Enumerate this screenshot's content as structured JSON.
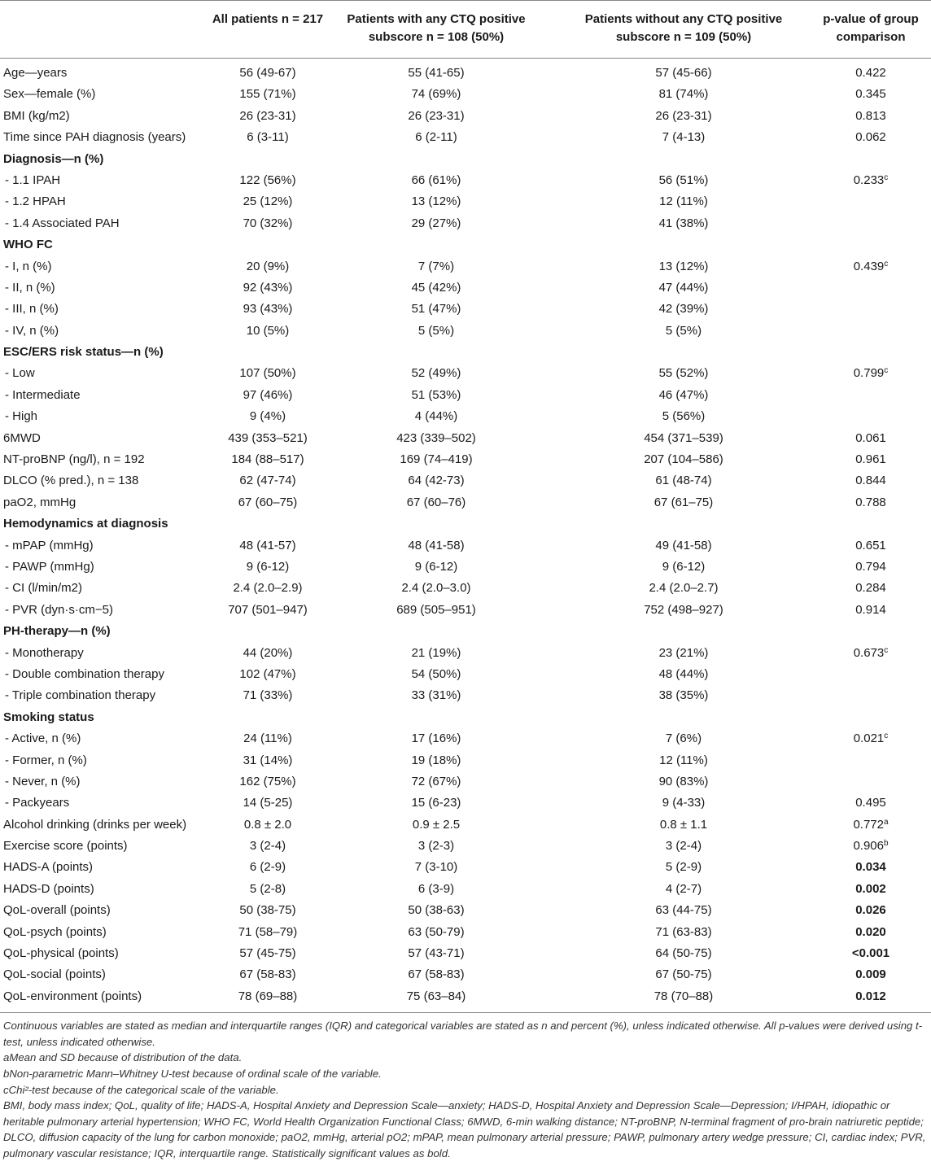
{
  "header": {
    "all": "All patients n = 217",
    "pos": "Patients with any CTQ positive subscore n = 108 (50%)",
    "neg": "Patients without any CTQ positive subscore n = 109 (50%)",
    "p": "p-value of group comparison"
  },
  "rows": [
    {
      "label": "Age—years",
      "all": "56 (49-67)",
      "pos": "55 (41-65)",
      "neg": "57 (45-66)",
      "p": "0.422"
    },
    {
      "label": "Sex—female (%)",
      "all": "155 (71%)",
      "pos": "74 (69%)",
      "neg": "81 (74%)",
      "p": "0.345"
    },
    {
      "label": "BMI (kg/m2)",
      "all": "26 (23-31)",
      "pos": "26 (23-31)",
      "neg": "26 (23-31)",
      "p": "0.813"
    },
    {
      "label": "Time since PAH diagnosis (years)",
      "all": "6 (3-11)",
      "pos": "6 (2-11)",
      "neg": "7 (4-13)",
      "p": "0.062"
    },
    {
      "label": "Diagnosis—n (%)",
      "section": true
    },
    {
      "label": "- 1.1 IPAH",
      "all": "122 (56%)",
      "pos": "66 (61%)",
      "neg": "56 (51%)",
      "p": "0.233",
      "psup": "c"
    },
    {
      "label": "- 1.2 HPAH",
      "all": "25 (12%)",
      "pos": "13 (12%)",
      "neg": "12 (11%)",
      "p": ""
    },
    {
      "label": "- 1.4 Associated PAH",
      "all": "70 (32%)",
      "pos": "29 (27%)",
      "neg": "41 (38%)",
      "p": ""
    },
    {
      "label": "WHO FC",
      "section": true
    },
    {
      "label": "- I, n (%)",
      "all": "20 (9%)",
      "pos": "7 (7%)",
      "neg": "13 (12%)",
      "p": "0.439",
      "psup": "c"
    },
    {
      "label": "- II, n (%)",
      "all": "92 (43%)",
      "pos": "45 (42%)",
      "neg": "47 (44%)",
      "p": ""
    },
    {
      "label": "- III, n (%)",
      "all": "93 (43%)",
      "pos": "51 (47%)",
      "neg": "42 (39%)",
      "p": ""
    },
    {
      "label": "- IV, n (%)",
      "all": "10 (5%)",
      "pos": "5 (5%)",
      "neg": "5 (5%)",
      "p": ""
    },
    {
      "label": "ESC/ERS risk status—n (%)",
      "section": true
    },
    {
      "label": "- Low",
      "all": "107 (50%)",
      "pos": "52 (49%)",
      "neg": "55 (52%)",
      "p": "0.799",
      "psup": "c"
    },
    {
      "label": "- Intermediate",
      "all": "97 (46%)",
      "pos": "51 (53%)",
      "neg": "46 (47%)",
      "p": ""
    },
    {
      "label": "- High",
      "all": "9 (4%)",
      "pos": "4 (44%)",
      "neg": "5 (56%)",
      "p": ""
    },
    {
      "label": "6MWD",
      "all": "439 (353–521)",
      "pos": "423 (339–502)",
      "neg": "454 (371–539)",
      "p": "0.061"
    },
    {
      "label": "NT-proBNP (ng/l), n = 192",
      "all": "184 (88–517)",
      "pos": "169 (74–419)",
      "neg": "207 (104–586)",
      "p": "0.961"
    },
    {
      "label": "DLCO (% pred.), n = 138",
      "all": "62 (47-74)",
      "pos": "64 (42-73)",
      "neg": "61 (48-74)",
      "p": "0.844"
    },
    {
      "label": "paO2, mmHg",
      "all": "67 (60–75)",
      "pos": "67 (60–76)",
      "neg": "67 (61–75)",
      "p": "0.788"
    },
    {
      "label": "Hemodynamics at diagnosis",
      "section": true
    },
    {
      "label": "- mPAP (mmHg)",
      "all": "48 (41-57)",
      "pos": "48 (41-58)",
      "neg": "49 (41-58)",
      "p": "0.651"
    },
    {
      "label": "- PAWP (mmHg)",
      "all": "9 (6-12)",
      "pos": "9 (6-12)",
      "neg": "9 (6-12)",
      "p": "0.794"
    },
    {
      "label": "- CI (l/min/m2)",
      "all": "2.4 (2.0–2.9)",
      "pos": "2.4 (2.0–3.0)",
      "neg": "2.4 (2.0–2.7)",
      "p": "0.284"
    },
    {
      "label": "- PVR (dyn·s·cm−5)",
      "all": "707 (501–947)",
      "pos": "689 (505–951)",
      "neg": "752 (498–927)",
      "p": "0.914"
    },
    {
      "label": "PH-therapy—n (%)",
      "section": true
    },
    {
      "label": "- Monotherapy",
      "all": "44 (20%)",
      "pos": "21 (19%)",
      "neg": "23 (21%)",
      "p": "0.673",
      "psup": "c"
    },
    {
      "label": "- Double combination therapy",
      "all": "102 (47%)",
      "pos": "54 (50%)",
      "neg": "48 (44%)",
      "p": ""
    },
    {
      "label": "- Triple combination therapy",
      "all": "71 (33%)",
      "pos": "33 (31%)",
      "neg": "38 (35%)",
      "p": ""
    },
    {
      "label": "Smoking status",
      "section": true
    },
    {
      "label": "- Active, n (%)",
      "all": "24 (11%)",
      "pos": "17 (16%)",
      "neg": "7 (6%)",
      "p": "0.021",
      "psup": "c"
    },
    {
      "label": "- Former, n (%)",
      "all": "31 (14%)",
      "pos": "19 (18%)",
      "neg": "12 (11%)",
      "p": ""
    },
    {
      "label": "- Never, n (%)",
      "all": "162 (75%)",
      "pos": "72 (67%)",
      "neg": "90 (83%)",
      "p": ""
    },
    {
      "label": "- Packyears",
      "all": "14 (5-25)",
      "pos": "15 (6-23)",
      "neg": "9 (4-33)",
      "p": "0.495"
    },
    {
      "label": "Alcohol drinking (drinks per week)",
      "all": "0.8 ± 2.0",
      "pos": "0.9 ± 2.5",
      "neg": "0.8 ± 1.1",
      "p": "0.772",
      "psup": "a"
    },
    {
      "label": "Exercise score (points)",
      "all": "3 (2-4)",
      "pos": "3 (2-3)",
      "neg": "3 (2-4)",
      "p": "0.906",
      "psup": "b"
    },
    {
      "label": "HADS-A (points)",
      "all": "6 (2-9)",
      "pos": "7 (3-10)",
      "neg": "5 (2-9)",
      "p": "0.034",
      "bold": true
    },
    {
      "label": "HADS-D (points)",
      "all": "5 (2-8)",
      "pos": "6 (3-9)",
      "neg": "4 (2-7)",
      "p": "0.002",
      "bold": true
    },
    {
      "label": "QoL-overall (points)",
      "all": "50 (38-75)",
      "pos": "50 (38-63)",
      "neg": "63 (44-75)",
      "p": "0.026",
      "bold": true
    },
    {
      "label": "QoL-psych (points)",
      "all": "71 (58–79)",
      "pos": "63 (50-79)",
      "neg": "71 (63-83)",
      "p": "0.020",
      "bold": true
    },
    {
      "label": "QoL-physical (points)",
      "all": "57 (45-75)",
      "pos": "57 (43-71)",
      "neg": "64 (50-75)",
      "p": "<0.001",
      "bold": true
    },
    {
      "label": "QoL-social (points)",
      "all": "67 (58-83)",
      "pos": "67 (58-83)",
      "neg": "67 (50-75)",
      "p": "0.009",
      "bold": true
    },
    {
      "label": "QoL-environment (points)",
      "all": "78 (69–88)",
      "pos": "75 (63–84)",
      "neg": "78 (70–88)",
      "p": "0.012",
      "bold": true
    }
  ],
  "footnotes": [
    "Continuous variables are stated as median and interquartile ranges (IQR) and categorical variables are stated as n and percent (%), unless indicated otherwise. All p-values were derived using t-test, unless indicated otherwise.",
    "aMean and SD because of distribution of the data.",
    "bNon-parametric Mann–Whitney U-test because of ordinal scale of the variable.",
    "cChi²-test because of the categorical scale of the variable.",
    "BMI, body mass index; QoL, quality of life; HADS-A, Hospital Anxiety and Depression Scale—anxiety; HADS-D, Hospital Anxiety and Depression Scale—Depression; I/HPAH, idiopathic or heritable pulmonary arterial hypertension; WHO FC, World Health Organization Functional Class; 6MWD, 6-min walking distance; NT-proBNP, N-terminal fragment of pro-brain natriuretic peptide; DLCO, diffusion capacity of the lung for carbon monoxide; paO2, mmHg, arterial pO2; mPAP, mean pulmonary arterial pressure; PAWP, pulmonary artery wedge pressure; CI, cardiac index; PVR, pulmonary vascular resistance; IQR, interquartile range. Statistically significant values as bold."
  ]
}
